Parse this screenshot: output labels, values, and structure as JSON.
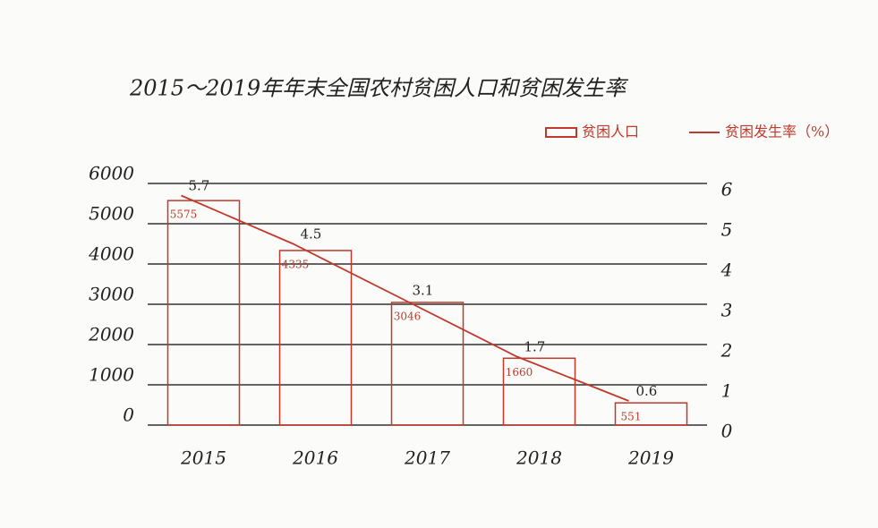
{
  "chart_data": {
    "type": "bar",
    "title": "2015～2019年年末全国农村贫困人口和贫困发生率",
    "categories": [
      "2015",
      "2016",
      "2017",
      "2018",
      "2019"
    ],
    "series": [
      {
        "name": "贫困人口",
        "type": "bar",
        "color": "#c0392b",
        "values": [
          5575,
          4335,
          3046,
          1660,
          551
        ]
      },
      {
        "name": "贫困发生率（%）",
        "type": "line",
        "axis": "y2",
        "color": "#c0392b",
        "values": [
          5.7,
          4.5,
          3.1,
          1.7,
          0.6
        ]
      }
    ],
    "ylim": [
      0,
      6000
    ],
    "yticks": [
      0,
      1000,
      2000,
      3000,
      4000,
      5000,
      6000
    ],
    "y2lim": [
      0,
      6
    ],
    "y2ticks": [
      0,
      1,
      2,
      3,
      4,
      5,
      6
    ],
    "grid": true,
    "legend": "top-right"
  }
}
